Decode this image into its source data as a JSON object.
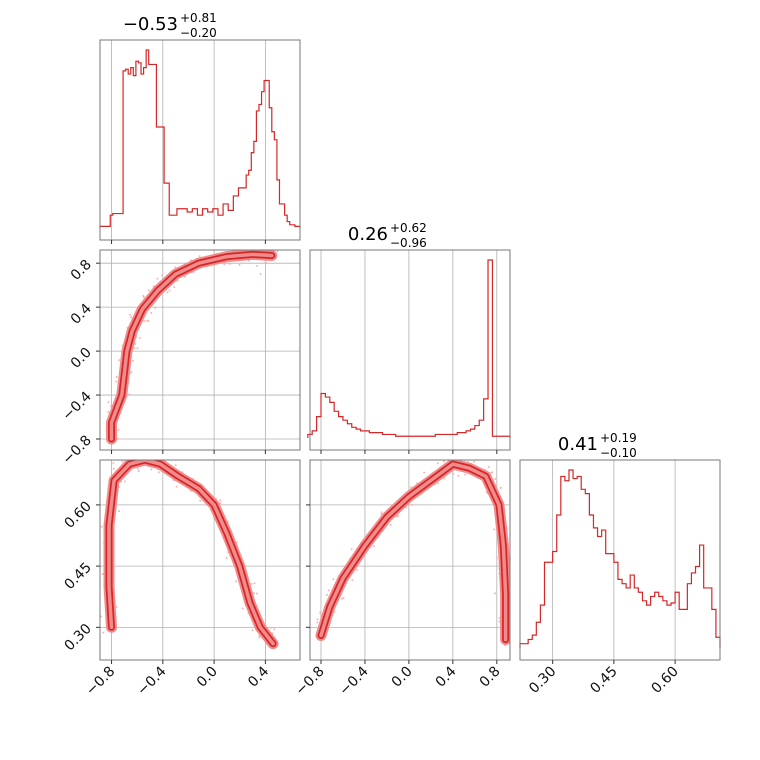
{
  "colors": {
    "accent": "#d62728",
    "fill": "#f08c8c",
    "scatter": "#f5b5b5",
    "grid": "#b0b0b0",
    "frame": "#777777"
  },
  "chart_data": {
    "type": "corner",
    "parameters": [
      {
        "title": "−0.53",
        "plus": "+0.81",
        "minus": "−0.20",
        "range": [
          -0.89,
          0.67
        ]
      },
      {
        "title": "0.26",
        "plus": "+0.62",
        "minus": "−0.96",
        "range": [
          -0.9,
          0.92
        ]
      },
      {
        "title": "0.41",
        "plus": "+0.19",
        "minus": "−0.10",
        "range": [
          0.22,
          0.71
        ]
      }
    ],
    "ticks": [
      {
        "values": [
          -0.8,
          -0.4,
          0.0,
          0.4
        ],
        "labels": [
          "−0.8",
          "−0.4",
          "0.0",
          "0.4"
        ]
      },
      {
        "values": [
          -0.8,
          -0.4,
          0.0,
          0.4,
          0.8
        ],
        "labels": [
          "−0.8",
          "−0.4",
          "0.0",
          "0.4",
          "0.8"
        ]
      },
      {
        "values": [
          0.3,
          0.45,
          0.6
        ],
        "labels": [
          "0.30",
          "0.45",
          "0.60"
        ]
      }
    ],
    "histograms": [
      {
        "param": 0,
        "x": [
          -0.88,
          -0.86,
          -0.84,
          -0.82,
          -0.8,
          -0.78,
          -0.76,
          -0.74,
          -0.72,
          -0.7,
          -0.68,
          -0.66,
          -0.64,
          -0.62,
          -0.6,
          -0.58,
          -0.56,
          -0.54,
          -0.52,
          -0.5,
          -0.48,
          -0.46,
          -0.44,
          -0.42,
          -0.4,
          -0.38,
          -0.36,
          -0.34,
          -0.32,
          -0.3,
          -0.28,
          -0.26,
          -0.24,
          -0.22,
          -0.2,
          -0.18,
          -0.16,
          -0.14,
          -0.12,
          -0.1,
          -0.08,
          -0.06,
          -0.04,
          -0.02,
          0.0,
          0.02,
          0.04,
          0.06,
          0.08,
          0.1,
          0.12,
          0.14,
          0.16,
          0.18,
          0.2,
          0.22,
          0.24,
          0.26,
          0.28,
          0.3,
          0.32,
          0.34,
          0.36,
          0.38,
          0.4,
          0.42,
          0.44,
          0.46,
          0.48,
          0.5,
          0.52,
          0.54,
          0.56,
          0.58,
          0.6,
          0.62,
          0.64,
          0.66
        ],
        "y": [
          1,
          1,
          1,
          1,
          8,
          9,
          9,
          9,
          9,
          98,
          99,
          96,
          100,
          95,
          104,
          103,
          96,
          100,
          111,
          102,
          102,
          102,
          63,
          63,
          63,
          28,
          28,
          8,
          8,
          8,
          12,
          12,
          12,
          12,
          10,
          10,
          12,
          12,
          8,
          8,
          12,
          12,
          10,
          10,
          12,
          12,
          8,
          8,
          15,
          15,
          11,
          11,
          20,
          20,
          25,
          25,
          25,
          33,
          36,
          47,
          54,
          73,
          77,
          85,
          92,
          92,
          75,
          60,
          55,
          30,
          15,
          15,
          8,
          4,
          2,
          2,
          1,
          1
        ]
      },
      {
        "param": 1,
        "x": [
          -0.9,
          -0.86,
          -0.82,
          -0.78,
          -0.74,
          -0.7,
          -0.66,
          -0.62,
          -0.58,
          -0.54,
          -0.5,
          -0.46,
          -0.42,
          -0.38,
          -0.34,
          -0.3,
          -0.26,
          -0.22,
          -0.18,
          -0.14,
          -0.1,
          -0.06,
          -0.02,
          0.02,
          0.06,
          0.1,
          0.14,
          0.18,
          0.22,
          0.26,
          0.3,
          0.34,
          0.38,
          0.42,
          0.46,
          0.5,
          0.54,
          0.58,
          0.62,
          0.66,
          0.7,
          0.74,
          0.78,
          0.82,
          0.86,
          0.9
        ],
        "y": [
          2,
          4,
          12,
          25,
          23,
          20,
          15,
          12,
          10,
          8,
          6,
          5,
          4,
          4,
          3,
          3,
          3,
          2,
          2,
          2,
          1,
          1,
          1,
          1,
          1,
          1,
          1,
          1,
          1,
          2,
          2,
          2,
          2,
          2,
          3,
          3,
          4,
          5,
          7,
          10,
          22,
          100,
          1,
          1,
          1,
          1
        ]
      },
      {
        "param": 2,
        "x": [
          0.225,
          0.235,
          0.245,
          0.255,
          0.265,
          0.275,
          0.285,
          0.295,
          0.305,
          0.315,
          0.325,
          0.335,
          0.345,
          0.355,
          0.365,
          0.375,
          0.385,
          0.395,
          0.405,
          0.415,
          0.425,
          0.435,
          0.445,
          0.455,
          0.465,
          0.475,
          0.485,
          0.495,
          0.505,
          0.515,
          0.525,
          0.535,
          0.545,
          0.555,
          0.565,
          0.575,
          0.585,
          0.595,
          0.605,
          0.615,
          0.625,
          0.635,
          0.645,
          0.655,
          0.665,
          0.675,
          0.685,
          0.695,
          0.705
        ],
        "y": [
          2,
          2,
          4,
          6,
          12,
          20,
          40,
          40,
          45,
          62,
          80,
          78,
          83,
          79,
          80,
          74,
          72,
          62,
          56,
          52,
          55,
          44,
          44,
          40,
          32,
          30,
          28,
          34,
          28,
          26,
          22,
          20,
          24,
          26,
          24,
          22,
          20,
          21,
          26,
          18,
          18,
          30,
          35,
          38,
          48,
          28,
          28,
          18,
          5
        ]
      }
    ],
    "joint_pairs": [
      {
        "x_param": 0,
        "y_param": 1,
        "curve": [
          [
            -0.8,
            -0.8
          ],
          [
            -0.8,
            -0.65
          ],
          [
            -0.72,
            -0.4
          ],
          [
            -0.7,
            -0.2
          ],
          [
            -0.68,
            0.0
          ],
          [
            -0.64,
            0.18
          ],
          [
            -0.56,
            0.38
          ],
          [
            -0.44,
            0.55
          ],
          [
            -0.3,
            0.7
          ],
          [
            -0.12,
            0.8
          ],
          [
            0.1,
            0.86
          ],
          [
            0.3,
            0.88
          ],
          [
            0.45,
            0.87
          ]
        ]
      },
      {
        "x_param": 0,
        "y_param": 2,
        "curve": [
          [
            -0.8,
            0.3
          ],
          [
            -0.82,
            0.4
          ],
          [
            -0.82,
            0.55
          ],
          [
            -0.78,
            0.66
          ],
          [
            -0.66,
            0.7
          ],
          [
            -0.54,
            0.71
          ],
          [
            -0.42,
            0.7
          ],
          [
            -0.28,
            0.67
          ],
          [
            -0.12,
            0.64
          ],
          [
            0.0,
            0.6
          ],
          [
            0.1,
            0.53
          ],
          [
            0.2,
            0.45
          ],
          [
            0.28,
            0.36
          ],
          [
            0.36,
            0.3
          ],
          [
            0.46,
            0.26
          ]
        ]
      },
      {
        "x_param": 1,
        "y_param": 2,
        "curve": [
          [
            -0.8,
            0.28
          ],
          [
            -0.72,
            0.35
          ],
          [
            -0.6,
            0.42
          ],
          [
            -0.4,
            0.5
          ],
          [
            -0.2,
            0.57
          ],
          [
            0.0,
            0.62
          ],
          [
            0.2,
            0.66
          ],
          [
            0.4,
            0.7
          ],
          [
            0.55,
            0.69
          ],
          [
            0.7,
            0.67
          ],
          [
            0.82,
            0.6
          ],
          [
            0.86,
            0.5
          ],
          [
            0.88,
            0.38
          ],
          [
            0.88,
            0.27
          ]
        ]
      }
    ]
  }
}
